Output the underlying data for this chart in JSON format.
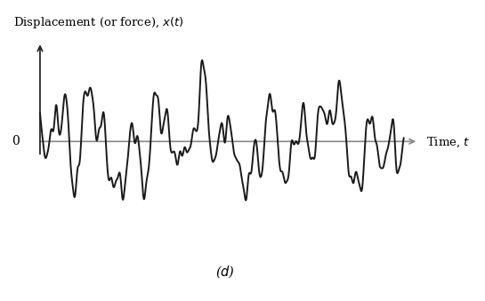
{
  "ylabel": "Displacement (or force), $x(t)$",
  "xlabel": "Time, $t$",
  "label_d": "($d$)",
  "zero_label": "0",
  "xlim": [
    -0.3,
    10.5
  ],
  "ylim": [
    -1.75,
    1.75
  ],
  "plot_xstart": 0.0,
  "plot_xend": 10.0,
  "line_color": "#1a1a1a",
  "line_width": 1.4,
  "axis_color": "#888888",
  "yaxis_color": "#1a1a1a",
  "background_color": "#ffffff",
  "figsize": [
    5.45,
    3.39
  ],
  "dpi": 100,
  "freqs": [
    0.28,
    0.62,
    1.05,
    1.55,
    2.15,
    2.9,
    4.0,
    5.3,
    6.8,
    8.5
  ],
  "amps": [
    0.55,
    0.65,
    0.75,
    0.6,
    0.45,
    0.3,
    0.2,
    0.13,
    0.08,
    0.05
  ],
  "phases": [
    0.5,
    2.1,
    4.3,
    1.8,
    3.7,
    0.9,
    2.5,
    5.1,
    1.2,
    3.3
  ],
  "envelope_decay": 0.12
}
